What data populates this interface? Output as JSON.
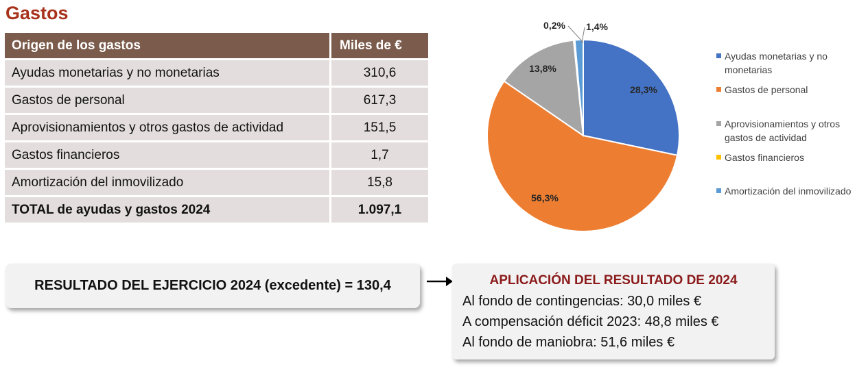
{
  "title": "Gastos",
  "table": {
    "headers": [
      "Origen de los gastos",
      "Miles de €"
    ],
    "rows": [
      {
        "label": "Ayudas monetarias y no monetarias",
        "value": "310,6"
      },
      {
        "label": "Gastos de personal",
        "value": "617,3"
      },
      {
        "label": "Aprovisionamientos y otros gastos de actividad",
        "value": "151,5"
      },
      {
        "label": "Gastos financieros",
        "value": "1,7"
      },
      {
        "label": "Amortización del inmovilizado",
        "value": "15,8"
      }
    ],
    "total": {
      "label": "TOTAL de ayudas y gastos 2024",
      "value": "1.097,1"
    }
  },
  "chart_data": {
    "type": "pie",
    "categories": [
      "Ayudas monetarias y no monetarias",
      "Gastos de personal",
      "Aprovisionamientos y otros gastos de actividad",
      "Gastos financieros",
      "Amortización del inmovilizado"
    ],
    "values": [
      28.3,
      56.3,
      13.8,
      0.2,
      1.4
    ],
    "labels": [
      "28,3%",
      "56,3%",
      "13,8%",
      "0,2%",
      "1,4%"
    ],
    "colors": [
      "#4472c4",
      "#ed7d31",
      "#a5a5a5",
      "#ffc000",
      "#5b9bd5"
    ],
    "legend_position": "right",
    "start_angle_deg": 0,
    "direction": "clockwise"
  },
  "result": {
    "text": "RESULTADO DEL EJERCICIO 2024 (excedente) = 130,4"
  },
  "application": {
    "title": "APLICACIÓN DEL RESULTADO DE 2024",
    "lines": [
      "Al fondo de contingencias: 30,0 miles €",
      "A compensación déficit 2023: 48,8 miles €",
      "Al fondo de maniobra: 51,6 miles €"
    ]
  }
}
